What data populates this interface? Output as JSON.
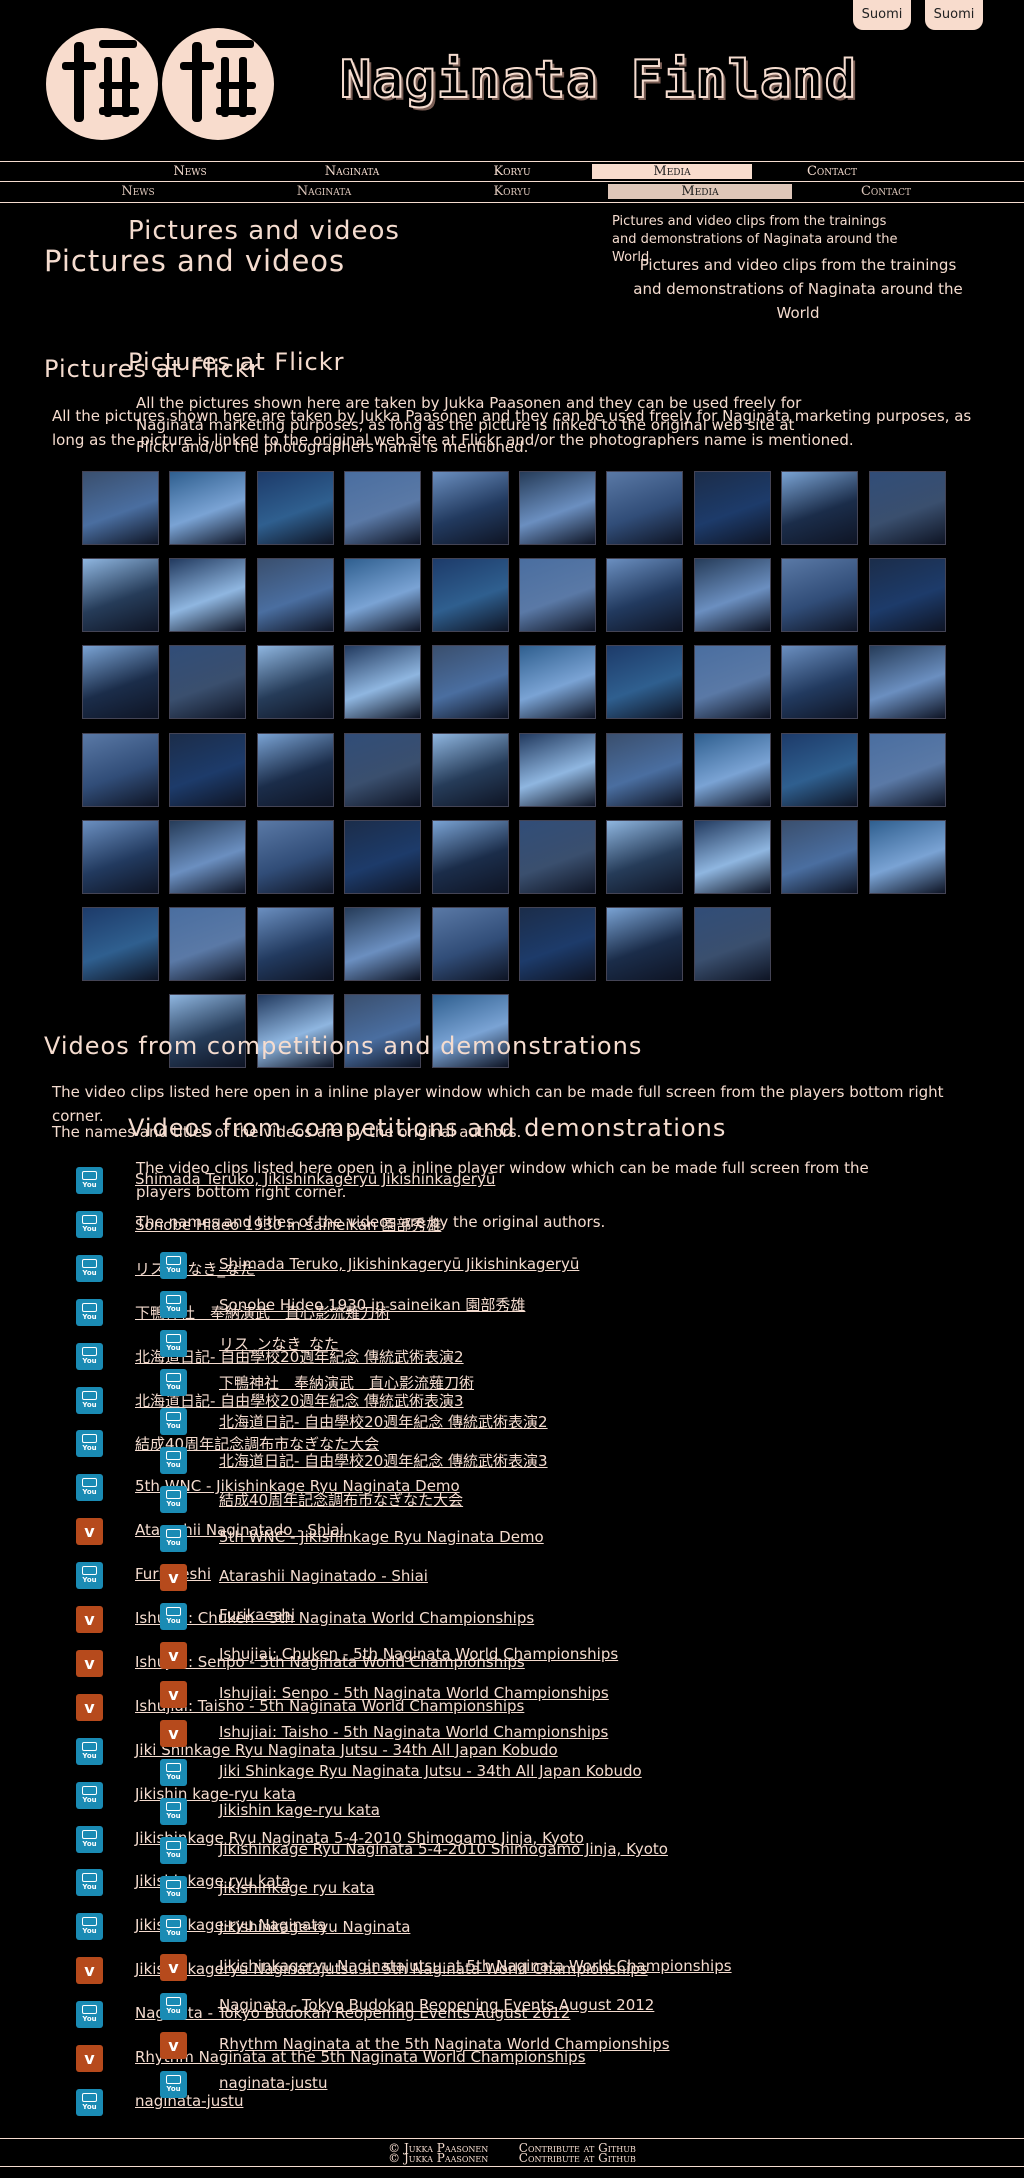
{
  "lang": {
    "button1": "Suomi",
    "button2": "Suomi"
  },
  "site": {
    "title": "Naginata Finland",
    "logo_icon": "naginata-kanji-logo"
  },
  "nav": [
    "News",
    "Naginata",
    "Koryu",
    "Media",
    "Contact"
  ],
  "nav_active": "Media",
  "page": {
    "title": "Pictures and videos",
    "tagline": "Pictures and video clips from the trainings and demonstrations of Naginata around the World"
  },
  "flickr": {
    "heading": "Pictures at Flickr",
    "text": "All the pictures shown here are taken by Jukka Paasonen and they can be used freely for Naginata marketing purposes, as long as the picture is linked to the original web site at Flickr and/or the photographers name is mentioned.",
    "thumb_count": 62,
    "thumb_colors": [
      "#3a4f6e",
      "#2f5f8f",
      "#1d3b6a",
      "#4a6ea0",
      "#6b8fc0",
      "#263c59",
      "#5a79a6",
      "#1b2d4a",
      "#7aa3d4",
      "#314d78",
      "#8fb6e0",
      "#223a5f"
    ]
  },
  "videos": {
    "heading": "Videos from competitions and demonstrations",
    "text1": "The video clips listed here open in a inline player window which can be made full screen from the players bottom right corner.",
    "text2": "The names and titles of the videos are by the original authors.",
    "items": [
      {
        "icon": "youtube-icon",
        "label": "Shimada Teruko, Jikishinkageryū Jikishinkageryū"
      },
      {
        "icon": "youtube-icon",
        "label": "Sonobe Hideo 1930 in saineikan 園部秀雄"
      },
      {
        "icon": "youtube-icon",
        "label": "リス_ンなき_なた"
      },
      {
        "icon": "youtube-icon",
        "label": "下鴨神社　奉納演武　直心影流薙刀術"
      },
      {
        "icon": "youtube-icon",
        "label": "北海道日記- 自由學校20週年紀念 傳統武術表演2"
      },
      {
        "icon": "youtube-icon",
        "label": "北海道日記- 自由學校20週年紀念 傳統武術表演3"
      },
      {
        "icon": "youtube-icon",
        "label": "結成40周年記念調布市なぎなた大会"
      },
      {
        "icon": "youtube-icon",
        "label": "5th WNC - Jikishinkage Ryu Naginata Demo"
      },
      {
        "icon": "vimeo-icon",
        "label": "Atarashii Naginatado - Shiai"
      },
      {
        "icon": "youtube-icon",
        "label": "Furikaeshi"
      },
      {
        "icon": "vimeo-icon",
        "label": "Ishujiai: Chuken - 5th Naginata World Championships"
      },
      {
        "icon": "vimeo-icon",
        "label": "Ishujiai: Senpo - 5th Naginata World Championships"
      },
      {
        "icon": "vimeo-icon",
        "label": "Ishujiai: Taisho - 5th Naginata World Championships"
      },
      {
        "icon": "youtube-icon",
        "label": "Jiki Shinkage Ryu Naginata Jutsu - 34th All Japan Kobudo"
      },
      {
        "icon": "youtube-icon",
        "label": "Jikishin kage-ryu kata"
      },
      {
        "icon": "youtube-icon",
        "label": "Jikishinkage Ryu Naginata 5-4-2010 Shimogamo Jinja, Kyoto"
      },
      {
        "icon": "youtube-icon",
        "label": "Jikishinkage ryu kata"
      },
      {
        "icon": "youtube-icon",
        "label": "Jikishinkage-ryu Naginata"
      },
      {
        "icon": "vimeo-icon",
        "label": "Jikishinkageryu Naginatajutsu at 5th Naginata World Championships"
      },
      {
        "icon": "youtube-icon",
        "label": "Naginata - Tokyo Budokan Reopening Events August 2012"
      },
      {
        "icon": "vimeo-icon",
        "label": "Rhythm Naginata at the 5th Naginata World Championships"
      },
      {
        "icon": "youtube-icon",
        "label": "naginata-justu"
      }
    ]
  },
  "footer": {
    "copyright": "© Jukka Paasonen",
    "contribute": "Contribute at Github"
  }
}
